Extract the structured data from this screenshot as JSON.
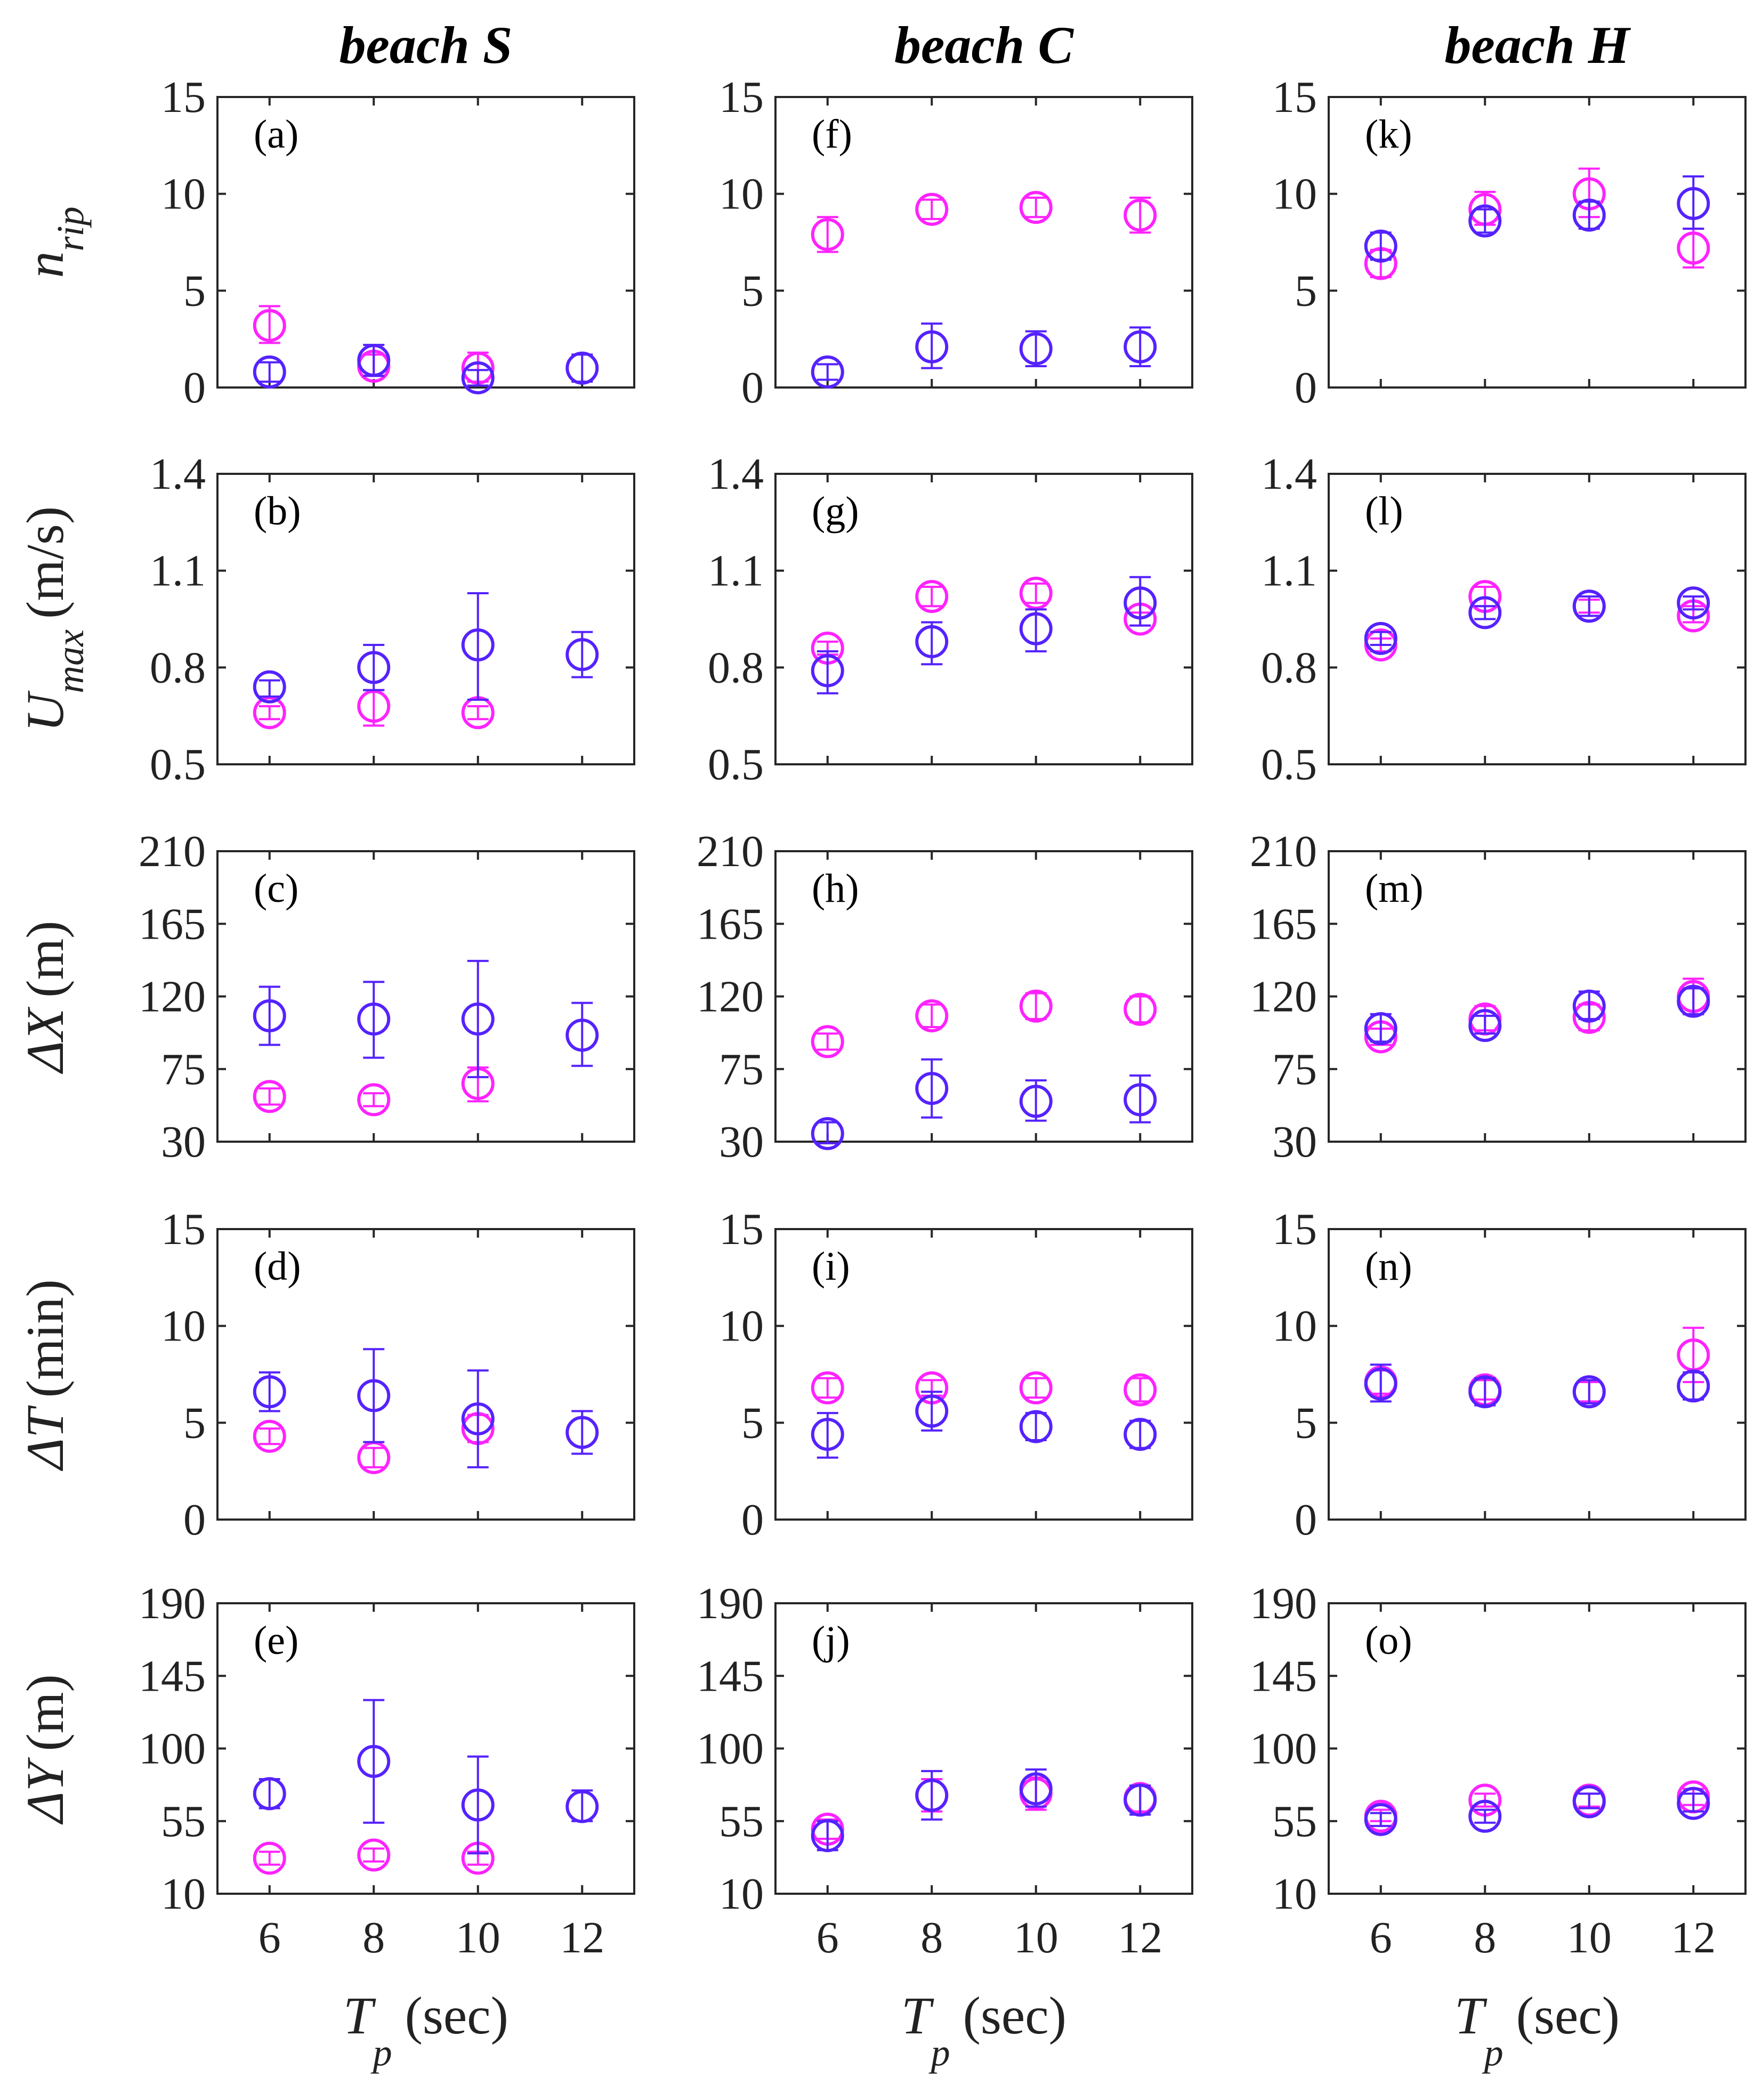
{
  "chart_data": {
    "type": "scatter",
    "x_label": {
      "var": "T",
      "sub": "p",
      "unit": "(sec)"
    },
    "x_ticks": [
      6,
      8,
      10,
      12
    ],
    "xlim": [
      5,
      13
    ],
    "series_colors": {
      "magenta": "#ff22ff",
      "blue": "#5522ff"
    },
    "columns": [
      {
        "title": "beach S"
      },
      {
        "title": "beach C"
      },
      {
        "title": "beach H"
      }
    ],
    "rows": [
      {
        "ylabel": {
          "var": "n",
          "sub": "rip",
          "unit": ""
        },
        "ylim": [
          0,
          15
        ],
        "yticks": [
          0,
          5,
          10,
          15
        ]
      },
      {
        "ylabel": {
          "var": "U",
          "sub": "max",
          "unit": "(m/s)"
        },
        "ylim": [
          0.5,
          1.4
        ],
        "yticks": [
          0.5,
          0.8,
          1.1,
          1.4
        ]
      },
      {
        "ylabel": {
          "var": "ΔX",
          "sub": "",
          "unit": "(m)"
        },
        "ylim": [
          30,
          210
        ],
        "yticks": [
          30,
          75,
          120,
          165,
          210
        ]
      },
      {
        "ylabel": {
          "var": "ΔT",
          "sub": "",
          "unit": "(min)"
        },
        "ylim": [
          0,
          15
        ],
        "yticks": [
          0,
          5,
          10,
          15
        ]
      },
      {
        "ylabel": {
          "var": "ΔY",
          "sub": "",
          "unit": "(m)"
        },
        "ylim": [
          10,
          190
        ],
        "yticks": [
          10,
          55,
          100,
          145,
          190
        ]
      }
    ],
    "panels": [
      {
        "label": "(a)",
        "col": 0,
        "row": 0,
        "magenta": [
          {
            "x": 6,
            "y": 3.2,
            "lo": 2.3,
            "hi": 4.2
          },
          {
            "x": 8,
            "y": 1.1,
            "lo": 0.6,
            "hi": 1.7
          },
          {
            "x": 10,
            "y": 1.0,
            "lo": 0.3,
            "hi": 1.8
          }
        ],
        "blue": [
          {
            "x": 6,
            "y": 0.8,
            "lo": 0.3,
            "hi": 1.3
          },
          {
            "x": 8,
            "y": 1.4,
            "lo": 0.6,
            "hi": 2.2
          },
          {
            "x": 10,
            "y": 0.5,
            "lo": 0.1,
            "hi": 0.9
          },
          {
            "x": 12,
            "y": 1.0,
            "lo": 0.3,
            "hi": 1.7
          }
        ]
      },
      {
        "label": "(b)",
        "col": 0,
        "row": 1,
        "magenta": [
          {
            "x": 6,
            "y": 0.66,
            "lo": 0.64,
            "hi": 0.68
          },
          {
            "x": 8,
            "y": 0.68,
            "lo": 0.62,
            "hi": 0.73
          },
          {
            "x": 10,
            "y": 0.66,
            "lo": 0.64,
            "hi": 0.68
          }
        ],
        "blue": [
          {
            "x": 6,
            "y": 0.74,
            "lo": 0.71,
            "hi": 0.76
          },
          {
            "x": 8,
            "y": 0.8,
            "lo": 0.73,
            "hi": 0.87
          },
          {
            "x": 10,
            "y": 0.87,
            "lo": 0.7,
            "hi": 1.03
          },
          {
            "x": 12,
            "y": 0.84,
            "lo": 0.77,
            "hi": 0.91
          }
        ]
      },
      {
        "label": "(c)",
        "col": 0,
        "row": 2,
        "magenta": [
          {
            "x": 6,
            "y": 58,
            "lo": 53,
            "hi": 63
          },
          {
            "x": 8,
            "y": 56,
            "lo": 52,
            "hi": 60
          },
          {
            "x": 10,
            "y": 66,
            "lo": 55,
            "hi": 76
          }
        ],
        "blue": [
          {
            "x": 6,
            "y": 108,
            "lo": 90,
            "hi": 126
          },
          {
            "x": 8,
            "y": 106,
            "lo": 82,
            "hi": 129
          },
          {
            "x": 10,
            "y": 106,
            "lo": 70,
            "hi": 142
          },
          {
            "x": 12,
            "y": 96,
            "lo": 77,
            "hi": 116
          }
        ]
      },
      {
        "label": "(d)",
        "col": 0,
        "row": 3,
        "magenta": [
          {
            "x": 6,
            "y": 4.3,
            "lo": 3.9,
            "hi": 4.7
          },
          {
            "x": 8,
            "y": 3.2,
            "lo": 2.7,
            "hi": 3.7
          },
          {
            "x": 10,
            "y": 4.7,
            "lo": 4.0,
            "hi": 5.4
          }
        ],
        "blue": [
          {
            "x": 6,
            "y": 6.6,
            "lo": 5.6,
            "hi": 7.6
          },
          {
            "x": 8,
            "y": 6.4,
            "lo": 4.0,
            "hi": 8.8
          },
          {
            "x": 10,
            "y": 5.2,
            "lo": 2.7,
            "hi": 7.7
          },
          {
            "x": 12,
            "y": 4.5,
            "lo": 3.4,
            "hi": 5.6
          }
        ]
      },
      {
        "label": "(e)",
        "col": 0,
        "row": 4,
        "magenta": [
          {
            "x": 6,
            "y": 32,
            "lo": 28,
            "hi": 36
          },
          {
            "x": 8,
            "y": 34,
            "lo": 30,
            "hi": 38
          },
          {
            "x": 10,
            "y": 32,
            "lo": 28,
            "hi": 36
          }
        ],
        "blue": [
          {
            "x": 6,
            "y": 72,
            "lo": 63,
            "hi": 81
          },
          {
            "x": 8,
            "y": 92,
            "lo": 54,
            "hi": 130
          },
          {
            "x": 10,
            "y": 65,
            "lo": 35,
            "hi": 95
          },
          {
            "x": 12,
            "y": 64,
            "lo": 55,
            "hi": 74
          }
        ]
      },
      {
        "label": "(f)",
        "col": 1,
        "row": 0,
        "magenta": [
          {
            "x": 6,
            "y": 7.9,
            "lo": 7.0,
            "hi": 8.8
          },
          {
            "x": 8,
            "y": 9.2,
            "lo": 8.7,
            "hi": 9.7
          },
          {
            "x": 10,
            "y": 9.3,
            "lo": 8.8,
            "hi": 9.8
          },
          {
            "x": 12,
            "y": 8.9,
            "lo": 8.0,
            "hi": 9.8
          }
        ],
        "blue": [
          {
            "x": 6,
            "y": 0.8,
            "lo": 0.4,
            "hi": 1.2
          },
          {
            "x": 8,
            "y": 2.1,
            "lo": 1.0,
            "hi": 3.3
          },
          {
            "x": 10,
            "y": 2.0,
            "lo": 1.1,
            "hi": 2.9
          },
          {
            "x": 12,
            "y": 2.1,
            "lo": 1.1,
            "hi": 3.1
          }
        ]
      },
      {
        "label": "(g)",
        "col": 1,
        "row": 1,
        "magenta": [
          {
            "x": 6,
            "y": 0.86,
            "lo": 0.84,
            "hi": 0.88
          },
          {
            "x": 8,
            "y": 1.02,
            "lo": 0.99,
            "hi": 1.05
          },
          {
            "x": 10,
            "y": 1.03,
            "lo": 1.0,
            "hi": 1.06
          },
          {
            "x": 12,
            "y": 0.95,
            "lo": 0.93,
            "hi": 0.97
          }
        ],
        "blue": [
          {
            "x": 6,
            "y": 0.79,
            "lo": 0.72,
            "hi": 0.85
          },
          {
            "x": 8,
            "y": 0.88,
            "lo": 0.81,
            "hi": 0.94
          },
          {
            "x": 10,
            "y": 0.92,
            "lo": 0.85,
            "hi": 0.98
          },
          {
            "x": 12,
            "y": 1.0,
            "lo": 0.93,
            "hi": 1.08
          }
        ]
      },
      {
        "label": "(h)",
        "col": 1,
        "row": 2,
        "magenta": [
          {
            "x": 6,
            "y": 92,
            "lo": 87,
            "hi": 97
          },
          {
            "x": 8,
            "y": 108,
            "lo": 101,
            "hi": 115
          },
          {
            "x": 10,
            "y": 114,
            "lo": 106,
            "hi": 122
          },
          {
            "x": 12,
            "y": 112,
            "lo": 104,
            "hi": 120
          }
        ],
        "blue": [
          {
            "x": 6,
            "y": 35,
            "lo": 29,
            "hi": 42
          },
          {
            "x": 8,
            "y": 63,
            "lo": 45,
            "hi": 81
          },
          {
            "x": 10,
            "y": 55,
            "lo": 43,
            "hi": 68
          },
          {
            "x": 12,
            "y": 56,
            "lo": 42,
            "hi": 71
          }
        ]
      },
      {
        "label": "(i)",
        "col": 1,
        "row": 3,
        "magenta": [
          {
            "x": 6,
            "y": 6.8,
            "lo": 6.3,
            "hi": 7.3
          },
          {
            "x": 8,
            "y": 6.8,
            "lo": 6.4,
            "hi": 7.2
          },
          {
            "x": 10,
            "y": 6.8,
            "lo": 6.3,
            "hi": 7.3
          },
          {
            "x": 12,
            "y": 6.7,
            "lo": 6.1,
            "hi": 7.3
          }
        ],
        "blue": [
          {
            "x": 6,
            "y": 4.4,
            "lo": 3.2,
            "hi": 5.5
          },
          {
            "x": 8,
            "y": 5.6,
            "lo": 4.6,
            "hi": 6.6
          },
          {
            "x": 10,
            "y": 4.8,
            "lo": 4.1,
            "hi": 5.5
          },
          {
            "x": 12,
            "y": 4.4,
            "lo": 3.7,
            "hi": 5.1
          }
        ]
      },
      {
        "label": "(j)",
        "col": 1,
        "row": 4,
        "magenta": [
          {
            "x": 6,
            "y": 50,
            "lo": 44,
            "hi": 56
          },
          {
            "x": 8,
            "y": 71,
            "lo": 61,
            "hi": 81
          },
          {
            "x": 10,
            "y": 72,
            "lo": 62,
            "hi": 82
          },
          {
            "x": 12,
            "y": 69,
            "lo": 61,
            "hi": 77
          }
        ],
        "blue": [
          {
            "x": 6,
            "y": 46,
            "lo": 37,
            "hi": 55
          },
          {
            "x": 8,
            "y": 71,
            "lo": 56,
            "hi": 86
          },
          {
            "x": 10,
            "y": 75,
            "lo": 64,
            "hi": 87
          },
          {
            "x": 12,
            "y": 68,
            "lo": 59,
            "hi": 77
          }
        ]
      },
      {
        "label": "(k)",
        "col": 2,
        "row": 0,
        "magenta": [
          {
            "x": 6,
            "y": 6.4,
            "lo": 5.7,
            "hi": 7.1
          },
          {
            "x": 8,
            "y": 9.2,
            "lo": 8.4,
            "hi": 10.1
          },
          {
            "x": 10,
            "y": 10.0,
            "lo": 8.8,
            "hi": 11.3
          },
          {
            "x": 12,
            "y": 7.2,
            "lo": 6.2,
            "hi": 8.2
          }
        ],
        "blue": [
          {
            "x": 6,
            "y": 7.3,
            "lo": 6.6,
            "hi": 8.0
          },
          {
            "x": 8,
            "y": 8.6,
            "lo": 8.0,
            "hi": 9.2
          },
          {
            "x": 10,
            "y": 8.9,
            "lo": 8.2,
            "hi": 9.6
          },
          {
            "x": 12,
            "y": 9.5,
            "lo": 8.2,
            "hi": 10.9
          }
        ]
      },
      {
        "label": "(l)",
        "col": 2,
        "row": 1,
        "magenta": [
          {
            "x": 6,
            "y": 0.87,
            "lo": 0.85,
            "hi": 0.89
          },
          {
            "x": 8,
            "y": 1.02,
            "lo": 0.99,
            "hi": 1.05
          },
          {
            "x": 10,
            "y": 0.99,
            "lo": 0.97,
            "hi": 1.01
          },
          {
            "x": 12,
            "y": 0.96,
            "lo": 0.94,
            "hi": 0.99
          }
        ],
        "blue": [
          {
            "x": 6,
            "y": 0.89,
            "lo": 0.87,
            "hi": 0.91
          },
          {
            "x": 8,
            "y": 0.97,
            "lo": 0.95,
            "hi": 0.99
          },
          {
            "x": 10,
            "y": 0.99,
            "lo": 0.96,
            "hi": 1.02
          },
          {
            "x": 12,
            "y": 1.0,
            "lo": 0.98,
            "hi": 1.02
          }
        ]
      },
      {
        "label": "(m)",
        "col": 2,
        "row": 2,
        "magenta": [
          {
            "x": 6,
            "y": 95,
            "lo": 90,
            "hi": 100
          },
          {
            "x": 8,
            "y": 106,
            "lo": 99,
            "hi": 114
          },
          {
            "x": 10,
            "y": 107,
            "lo": 99,
            "hi": 115
          },
          {
            "x": 12,
            "y": 120,
            "lo": 109,
            "hi": 131
          }
        ],
        "blue": [
          {
            "x": 6,
            "y": 100,
            "lo": 92,
            "hi": 109
          },
          {
            "x": 8,
            "y": 102,
            "lo": 97,
            "hi": 108
          },
          {
            "x": 10,
            "y": 114,
            "lo": 106,
            "hi": 123
          },
          {
            "x": 12,
            "y": 117,
            "lo": 109,
            "hi": 125
          }
        ]
      },
      {
        "label": "(n)",
        "col": 2,
        "row": 3,
        "magenta": [
          {
            "x": 6,
            "y": 7.1,
            "lo": 6.5,
            "hi": 7.7
          },
          {
            "x": 8,
            "y": 6.7,
            "lo": 6.2,
            "hi": 7.2
          },
          {
            "x": 10,
            "y": 6.6,
            "lo": 6.1,
            "hi": 7.1
          },
          {
            "x": 12,
            "y": 8.5,
            "lo": 7.1,
            "hi": 9.9
          }
        ],
        "blue": [
          {
            "x": 6,
            "y": 7.0,
            "lo": 6.1,
            "hi": 8.0
          },
          {
            "x": 8,
            "y": 6.6,
            "lo": 5.9,
            "hi": 7.3
          },
          {
            "x": 10,
            "y": 6.6,
            "lo": 6.0,
            "hi": 7.2
          },
          {
            "x": 12,
            "y": 6.9,
            "lo": 6.2,
            "hi": 7.6
          }
        ]
      },
      {
        "label": "(o)",
        "col": 2,
        "row": 4,
        "magenta": [
          {
            "x": 6,
            "y": 58,
            "lo": 55,
            "hi": 62
          },
          {
            "x": 8,
            "y": 68,
            "lo": 64,
            "hi": 72
          },
          {
            "x": 10,
            "y": 68,
            "lo": 64,
            "hi": 72
          },
          {
            "x": 12,
            "y": 70,
            "lo": 65,
            "hi": 75
          }
        ],
        "blue": [
          {
            "x": 6,
            "y": 56,
            "lo": 52,
            "hi": 60
          },
          {
            "x": 8,
            "y": 58,
            "lo": 54,
            "hi": 62
          },
          {
            "x": 10,
            "y": 67,
            "lo": 63,
            "hi": 72
          },
          {
            "x": 12,
            "y": 66,
            "lo": 61,
            "hi": 72
          }
        ]
      }
    ]
  }
}
